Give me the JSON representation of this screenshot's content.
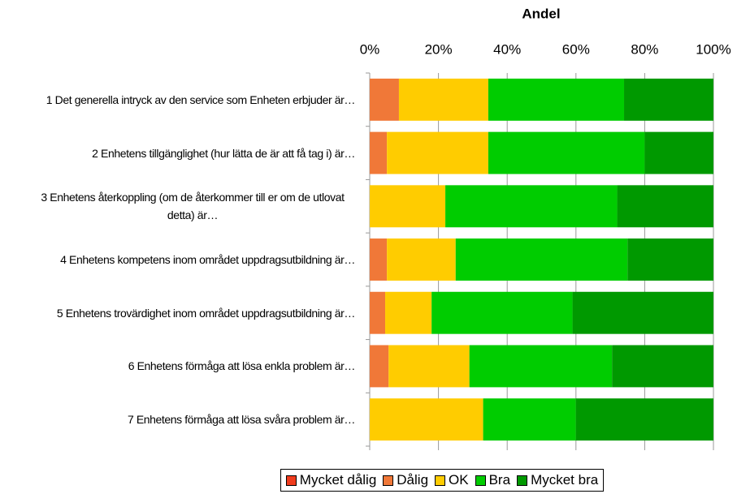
{
  "chart_data": {
    "type": "stacked_barh",
    "x_label": "Andel",
    "categories": [
      "1  Det generella intryck av den service som Enheten erbjuder är…",
      "2  Enhetens tillgänglighet (hur lätta de är att få tag i) är…",
      "3  Enhetens återkoppling (om de återkommer till er om de utlovat detta) är…",
      "4  Enhetens kompetens inom området uppdragsutbildning är…",
      "5  Enhetens trovärdighet inom området uppdragsutbildning är…",
      "6  Enhetens förmåga att lösa enkla problem är…",
      "7  Enhetens förmåga att lösa svåra problem är…"
    ],
    "series": [
      {
        "name": "Mycket dålig",
        "color": "#f03c1e",
        "values": [
          0,
          0,
          0,
          0,
          0,
          0,
          0
        ]
      },
      {
        "name": "Dålig",
        "color": "#f07838",
        "values": [
          8.5,
          5,
          0,
          5,
          4.5,
          5.5,
          0
        ]
      },
      {
        "name": "OK",
        "color": "#ffcc00",
        "values": [
          26,
          29.5,
          22,
          20,
          13.5,
          23.5,
          33
        ]
      },
      {
        "name": "Bra",
        "color": "#00cc00",
        "values": [
          39.5,
          45.5,
          50,
          50,
          41,
          41.5,
          27
        ]
      },
      {
        "name": "Mycket bra",
        "color": "#009900",
        "values": [
          26,
          20,
          28,
          25,
          41,
          29.5,
          40
        ]
      }
    ],
    "xlim": [
      0,
      100
    ],
    "xticks": [
      {
        "value": 0,
        "label": "0%"
      },
      {
        "value": 20,
        "label": "20%"
      },
      {
        "value": 40,
        "label": "40%"
      },
      {
        "value": 60,
        "label": "60%"
      },
      {
        "value": 80,
        "label": "80%"
      },
      {
        "value": 100,
        "label": "100%"
      }
    ],
    "grid": true,
    "legend": "bottom"
  }
}
